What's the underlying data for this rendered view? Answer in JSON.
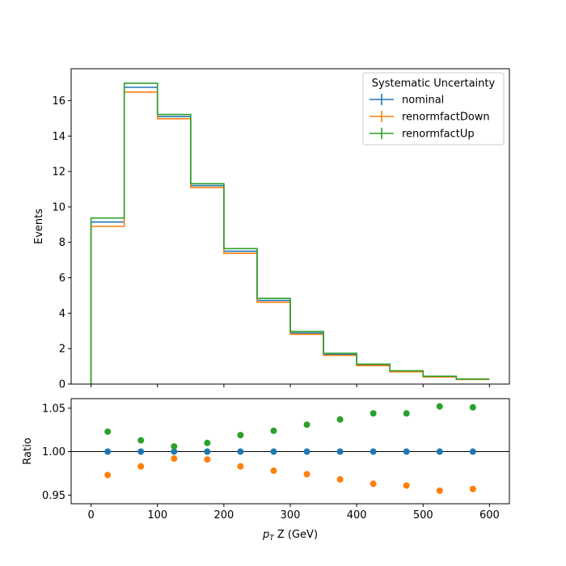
{
  "chart_data": [
    {
      "type": "step",
      "panel": "main",
      "ylabel": "Events",
      "xlim": [
        -30,
        630
      ],
      "ylim": [
        0,
        17.8
      ],
      "xticks": [
        0,
        100,
        200,
        300,
        400,
        500,
        600
      ],
      "xtick_labels": [
        "",
        "",
        "",
        "",
        "",
        "",
        ""
      ],
      "yticks": [
        0,
        2,
        4,
        6,
        8,
        10,
        12,
        14,
        16
      ],
      "ytick_labels": [
        "0",
        "2",
        "4",
        "6",
        "8",
        "10",
        "12",
        "14",
        "16"
      ],
      "bin_edges": [
        0,
        50,
        100,
        150,
        200,
        250,
        300,
        350,
        400,
        450,
        500,
        550,
        600
      ],
      "legend": {
        "title": "Systematic Uncertainty",
        "placement": "top-right"
      },
      "series": [
        {
          "name": "nominal",
          "color": "#1f77b4",
          "values": [
            9.15,
            16.75,
            15.1,
            11.2,
            7.5,
            4.72,
            2.88,
            1.67,
            1.08,
            0.72,
            0.42,
            0.27
          ]
        },
        {
          "name": "renormfactDown",
          "color": "#ff7f0e",
          "values": [
            8.9,
            16.48,
            14.98,
            11.1,
            7.38,
            4.62,
            2.81,
            1.62,
            1.04,
            0.69,
            0.4,
            0.26
          ]
        },
        {
          "name": "renormfactUp",
          "color": "#2ca02c",
          "values": [
            9.37,
            16.98,
            15.22,
            11.31,
            7.65,
            4.84,
            2.97,
            1.74,
            1.13,
            0.75,
            0.44,
            0.28
          ]
        }
      ]
    },
    {
      "type": "scatter",
      "panel": "ratio",
      "xlabel_prefix": "p",
      "xlabel_sub": "T",
      "xlabel_suffix": " Z (GeV)",
      "ylabel": "Ratio",
      "xlim": [
        -30,
        630
      ],
      "ylim": [
        0.94,
        1.061
      ],
      "xticks": [
        0,
        100,
        200,
        300,
        400,
        500,
        600
      ],
      "xtick_labels": [
        "0",
        "100",
        "200",
        "300",
        "400",
        "500",
        "600"
      ],
      "yticks": [
        0.95,
        1.0,
        1.05
      ],
      "ytick_labels": [
        "0.95",
        "1.00",
        "1.05"
      ],
      "reference_line": 1.0,
      "x": [
        25,
        75,
        125,
        175,
        225,
        275,
        325,
        375,
        425,
        475,
        525,
        575
      ],
      "series": [
        {
          "name": "nominal",
          "color": "#1f77b4",
          "values": [
            1.0,
            1.0,
            1.0,
            1.0,
            1.0,
            1.0,
            1.0,
            1.0,
            1.0,
            1.0,
            1.0,
            1.0
          ]
        },
        {
          "name": "renormfactDown",
          "color": "#ff7f0e",
          "values": [
            0.973,
            0.983,
            0.992,
            0.991,
            0.983,
            0.978,
            0.974,
            0.968,
            0.963,
            0.961,
            0.955,
            0.957
          ]
        },
        {
          "name": "renormfactUp",
          "color": "#2ca02c",
          "values": [
            1.023,
            1.013,
            1.006,
            1.01,
            1.019,
            1.024,
            1.031,
            1.037,
            1.044,
            1.044,
            1.052,
            1.051
          ]
        }
      ]
    }
  ]
}
